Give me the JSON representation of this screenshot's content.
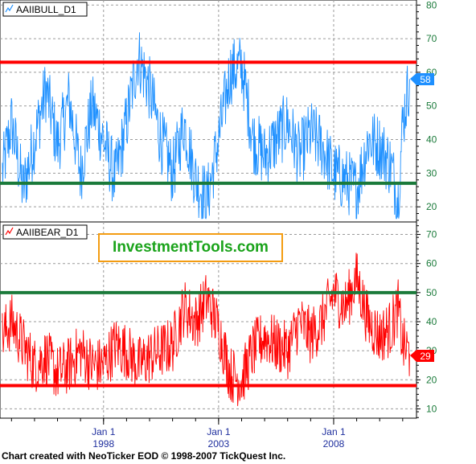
{
  "footer": "Chart created with NeoTicker EOD © 1998-2007 TickQuest Inc.",
  "logo_text": "InvestmentTools.com",
  "colors": {
    "bull_series": "#1e90ff",
    "bear_series": "#ff0000",
    "red_line": "#ff0000",
    "green_line": "#1a7a3a",
    "axis_text": "#1a7a3a",
    "date_text": "#1f2f9e"
  },
  "x_axis": {
    "tick_labels": [
      {
        "month": "Jan 1",
        "year": "1998",
        "x": 1998
      },
      {
        "month": "Jan 1",
        "year": "2003",
        "x": 2003
      },
      {
        "month": "Jan 1",
        "year": "2008",
        "x": 2008
      }
    ],
    "range": [
      1993.5,
      2011.6
    ]
  },
  "chart_data": [
    {
      "type": "line",
      "title": "AAIIBULL_D1",
      "y_ticks": [
        20,
        30,
        40,
        50,
        60,
        70,
        80
      ],
      "ylim": [
        15.5,
        81.5
      ],
      "last_value": 58,
      "last_value_label": "58",
      "reference_lines": [
        {
          "value": 63,
          "color": "red"
        },
        {
          "value": 27,
          "color": "green"
        }
      ],
      "grid": true,
      "series_points": [
        [
          1993.6,
          30
        ],
        [
          1994.0,
          45
        ],
        [
          1994.5,
          25
        ],
        [
          1995.0,
          40
        ],
        [
          1995.5,
          55
        ],
        [
          1996.0,
          38
        ],
        [
          1996.5,
          52
        ],
        [
          1997.0,
          30
        ],
        [
          1997.5,
          50
        ],
        [
          1998.0,
          40
        ],
        [
          1998.5,
          28
        ],
        [
          1999.0,
          45
        ],
        [
          1999.5,
          65
        ],
        [
          2000.0,
          55
        ],
        [
          2000.5,
          40
        ],
        [
          2001.0,
          30
        ],
        [
          2001.5,
          45
        ],
        [
          2002.0,
          28
        ],
        [
          2002.5,
          22
        ],
        [
          2003.0,
          40
        ],
        [
          2003.5,
          60
        ],
        [
          2004.0,
          62
        ],
        [
          2004.5,
          40
        ],
        [
          2005.0,
          35
        ],
        [
          2005.5,
          40
        ],
        [
          2006.0,
          45
        ],
        [
          2006.5,
          35
        ],
        [
          2007.0,
          42
        ],
        [
          2007.5,
          38
        ],
        [
          2008.0,
          30
        ],
        [
          2008.5,
          28
        ],
        [
          2009.0,
          25
        ],
        [
          2009.5,
          40
        ],
        [
          2010.0,
          38
        ],
        [
          2010.5,
          32
        ],
        [
          2010.8,
          22
        ],
        [
          2011.0,
          45
        ],
        [
          2011.3,
          58
        ]
      ]
    },
    {
      "type": "line",
      "title": "AAIIBEAR_D1",
      "y_ticks": [
        10,
        20,
        30,
        40,
        50,
        60,
        70
      ],
      "ylim": [
        6.8,
        74.3
      ],
      "last_value": 29,
      "last_value_label": "29",
      "reference_lines": [
        {
          "value": 50,
          "color": "green"
        },
        {
          "value": 18,
          "color": "red"
        }
      ],
      "grid": true,
      "series_points": [
        [
          1993.6,
          35
        ],
        [
          1994.0,
          40
        ],
        [
          1994.5,
          32
        ],
        [
          1995.0,
          25
        ],
        [
          1995.5,
          28
        ],
        [
          1996.0,
          22
        ],
        [
          1996.5,
          25
        ],
        [
          1997.0,
          30
        ],
        [
          1997.5,
          25
        ],
        [
          1998.0,
          25
        ],
        [
          1998.5,
          32
        ],
        [
          1999.0,
          30
        ],
        [
          1999.5,
          25
        ],
        [
          2000.0,
          28
        ],
        [
          2000.5,
          30
        ],
        [
          2001.0,
          32
        ],
        [
          2001.5,
          45
        ],
        [
          2002.0,
          40
        ],
        [
          2002.5,
          48
        ],
        [
          2003.0,
          38
        ],
        [
          2003.5,
          22
        ],
        [
          2004.0,
          20
        ],
        [
          2004.5,
          30
        ],
        [
          2005.0,
          35
        ],
        [
          2005.5,
          32
        ],
        [
          2006.0,
          30
        ],
        [
          2006.5,
          40
        ],
        [
          2007.0,
          35
        ],
        [
          2007.5,
          40
        ],
        [
          2008.0,
          50
        ],
        [
          2008.5,
          45
        ],
        [
          2009.0,
          55
        ],
        [
          2009.5,
          40
        ],
        [
          2010.0,
          35
        ],
        [
          2010.5,
          38
        ],
        [
          2010.8,
          45
        ],
        [
          2011.0,
          32
        ],
        [
          2011.3,
          29
        ]
      ]
    }
  ]
}
